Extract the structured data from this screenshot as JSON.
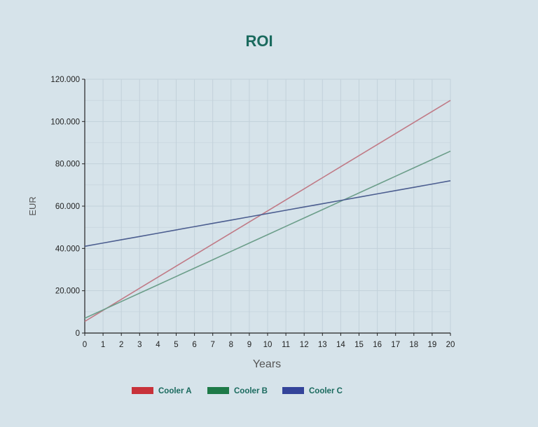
{
  "chart_data": {
    "type": "line",
    "title": "ROI",
    "xlabel": "Years",
    "ylabel": "EUR",
    "x": [
      0,
      1,
      2,
      3,
      4,
      5,
      6,
      7,
      8,
      9,
      10,
      11,
      12,
      13,
      14,
      15,
      16,
      17,
      18,
      19,
      20
    ],
    "xlim": [
      0,
      20
    ],
    "ylim": [
      0,
      120000
    ],
    "x_ticks": [
      "0",
      "1",
      "2",
      "3",
      "4",
      "5",
      "6",
      "7",
      "8",
      "9",
      "10",
      "11",
      "12",
      "13",
      "14",
      "15",
      "16",
      "17",
      "18",
      "19",
      "20"
    ],
    "y_ticks": [
      {
        "value": 0,
        "label": "0"
      },
      {
        "value": 20000,
        "label": "20.000"
      },
      {
        "value": 40000,
        "label": "40.000"
      },
      {
        "value": 60000,
        "label": "60.000"
      },
      {
        "value": 80000,
        "label": "80.000"
      },
      {
        "value": 100000,
        "label": "100.000"
      },
      {
        "value": 120000,
        "label": "120.000"
      }
    ],
    "grid": true,
    "legend_position": "bottom",
    "series": [
      {
        "name": "Cooler A",
        "color": "#c8323a",
        "line_color": "#c07a86",
        "values": [
          5500,
          10725,
          15950,
          21175,
          26400,
          31625,
          36850,
          42075,
          47300,
          52525,
          57750,
          62975,
          68200,
          73425,
          78650,
          83875,
          89100,
          94325,
          99550,
          104775,
          110000
        ]
      },
      {
        "name": "Cooler B",
        "color": "#1e7a48",
        "line_color": "#6c9e8a",
        "values": [
          7000,
          10950,
          14900,
          18850,
          22800,
          26750,
          30700,
          34650,
          38600,
          42550,
          46500,
          50450,
          54400,
          58350,
          62300,
          66250,
          70200,
          74150,
          78100,
          82050,
          86000
        ]
      },
      {
        "name": "Cooler C",
        "color": "#34449a",
        "line_color": "#4c5e90",
        "values": [
          41000,
          42550,
          44100,
          45650,
          47200,
          48750,
          50300,
          51850,
          53400,
          54950,
          56500,
          58050,
          59600,
          61150,
          62700,
          64250,
          65800,
          67350,
          68900,
          70450,
          72000
        ]
      }
    ]
  },
  "colors": {
    "background": "#d6e3ea",
    "title": "#1a6a5e",
    "axis_text": "#222222",
    "axis_label": "#555555",
    "legend_text": "#1a6a5e",
    "grid": "#c2d1da",
    "axis": "#222222"
  }
}
